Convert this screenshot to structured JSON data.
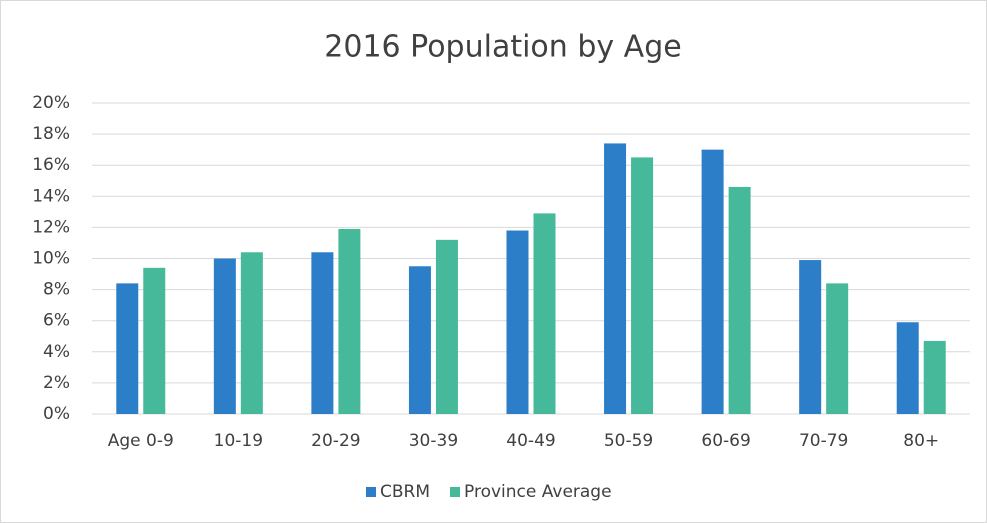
{
  "chart_data": {
    "type": "bar",
    "title": "2016 Population by Age",
    "categories": [
      "Age 0-9",
      "10-19",
      "20-29",
      "30-39",
      "40-49",
      "50-59",
      "60-69",
      "70-79",
      "80+"
    ],
    "series": [
      {
        "name": "CBRM",
        "color": "#2b7ec7",
        "values": [
          8.4,
          10.0,
          10.4,
          9.5,
          11.8,
          17.4,
          17.0,
          9.9,
          5.9
        ]
      },
      {
        "name": "Province Average",
        "color": "#45b99a",
        "values": [
          9.4,
          10.4,
          11.9,
          11.2,
          12.9,
          16.5,
          14.6,
          8.4,
          4.7
        ]
      }
    ],
    "ylim": [
      0,
      20
    ],
    "yticks": [
      {
        "value": 0,
        "label": "0%"
      },
      {
        "value": 2,
        "label": "2%"
      },
      {
        "value": 4,
        "label": "4%"
      },
      {
        "value": 6,
        "label": "6%"
      },
      {
        "value": 8,
        "label": "8%"
      },
      {
        "value": 10,
        "label": "10%"
      },
      {
        "value": 12,
        "label": "12%"
      },
      {
        "value": 14,
        "label": "14%"
      },
      {
        "value": 16,
        "label": "16%"
      },
      {
        "value": 18,
        "label": "18%"
      },
      {
        "value": 20,
        "label": "20%"
      }
    ],
    "grid": true,
    "legend": "bottom"
  }
}
